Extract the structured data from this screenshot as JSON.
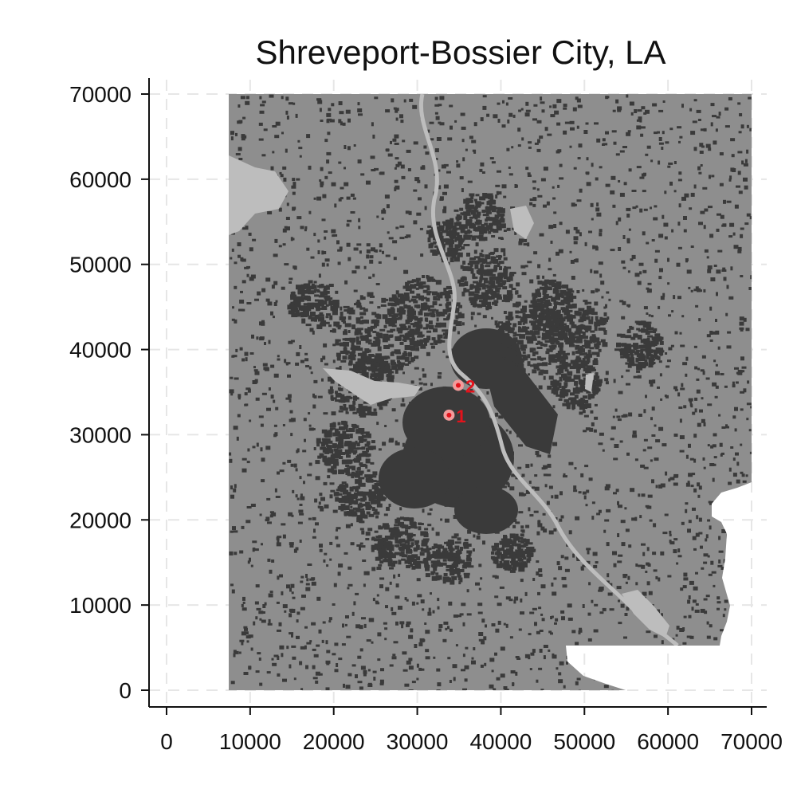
{
  "chart_data": {
    "type": "map",
    "title": "Shreveport-Bossier City, LA",
    "xlim": [
      0,
      70000
    ],
    "ylim": [
      0,
      70000
    ],
    "x_ticks": [
      "0",
      "10000",
      "20000",
      "30000",
      "40000",
      "50000",
      "60000",
      "70000"
    ],
    "y_ticks": [
      "0",
      "10000",
      "20000",
      "30000",
      "40000",
      "50000",
      "60000",
      "70000"
    ],
    "grid": true,
    "extent": {
      "x0": 7500,
      "x1": 70000,
      "y0": 0,
      "y1": 70000
    },
    "markers": [
      {
        "label": "1",
        "x": 33800,
        "y": 32300
      },
      {
        "label": "2",
        "x": 34900,
        "y": 35800
      }
    ],
    "colors": {
      "land": "#8e8e8e",
      "urban": "#3a3a3a",
      "water": "#bdbdbd",
      "marker": "#e3121b",
      "marker_halo": "#f39b9b"
    }
  }
}
